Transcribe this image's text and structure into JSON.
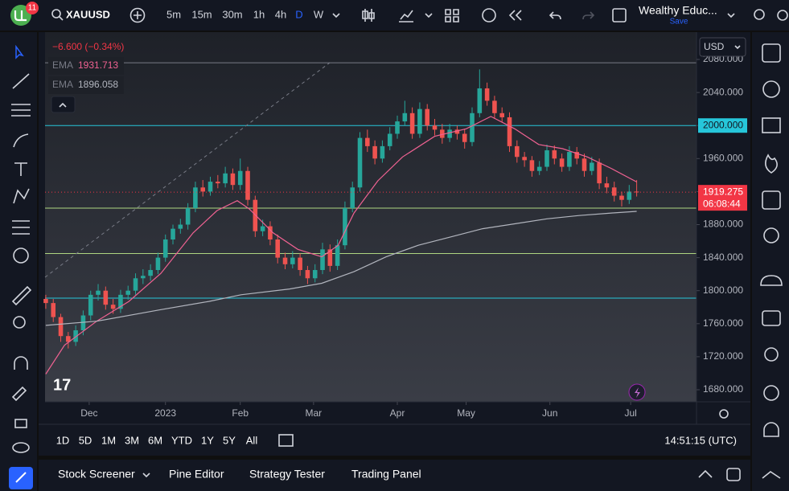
{
  "toolbar": {
    "badge": "11",
    "symbol": "XAUUSD",
    "intervals": [
      "5m",
      "15m",
      "30m",
      "1h",
      "4h",
      "D",
      "W"
    ],
    "active_interval": 5,
    "layout_name": "Wealthy Educ...",
    "save": "Save"
  },
  "chart_data": {
    "type": "candlestick",
    "change": "−6.600 (−0.34%)",
    "up_color": "#26a69a",
    "down_color": "#ef5350",
    "candles": [
      [
        1790,
        1795,
        1778,
        1785
      ],
      [
        1785,
        1790,
        1762,
        1768
      ],
      [
        1768,
        1772,
        1738,
        1745
      ],
      [
        1745,
        1750,
        1730,
        1738
      ],
      [
        1738,
        1758,
        1733,
        1752
      ],
      [
        1752,
        1776,
        1746,
        1770
      ],
      [
        1770,
        1800,
        1764,
        1795
      ],
      [
        1795,
        1808,
        1788,
        1800
      ],
      [
        1800,
        1805,
        1777,
        1783
      ],
      [
        1783,
        1790,
        1772,
        1778
      ],
      [
        1778,
        1801,
        1773,
        1795
      ],
      [
        1795,
        1806,
        1789,
        1800
      ],
      [
        1800,
        1821,
        1795,
        1815
      ],
      [
        1815,
        1826,
        1808,
        1818
      ],
      [
        1818,
        1832,
        1812,
        1825
      ],
      [
        1825,
        1846,
        1820,
        1840
      ],
      [
        1840,
        1868,
        1835,
        1862
      ],
      [
        1862,
        1880,
        1856,
        1875
      ],
      [
        1875,
        1887,
        1869,
        1880
      ],
      [
        1880,
        1906,
        1874,
        1900
      ],
      [
        1900,
        1932,
        1895,
        1925
      ],
      [
        1925,
        1934,
        1914,
        1920
      ],
      [
        1920,
        1938,
        1915,
        1932
      ],
      [
        1932,
        1940,
        1924,
        1930
      ],
      [
        1930,
        1950,
        1925,
        1942
      ],
      [
        1942,
        1948,
        1922,
        1928
      ],
      [
        1928,
        1960,
        1922,
        1945
      ],
      [
        1945,
        1950,
        1903,
        1910
      ],
      [
        1910,
        1915,
        1865,
        1872
      ],
      [
        1872,
        1886,
        1866,
        1878
      ],
      [
        1878,
        1884,
        1855,
        1862
      ],
      [
        1862,
        1868,
        1833,
        1840
      ],
      [
        1840,
        1846,
        1826,
        1832
      ],
      [
        1832,
        1848,
        1827,
        1840
      ],
      [
        1840,
        1845,
        1818,
        1825
      ],
      [
        1825,
        1830,
        1808,
        1815
      ],
      [
        1815,
        1832,
        1810,
        1825
      ],
      [
        1825,
        1858,
        1820,
        1850
      ],
      [
        1850,
        1856,
        1823,
        1830
      ],
      [
        1830,
        1862,
        1825,
        1855
      ],
      [
        1855,
        1908,
        1850,
        1900
      ],
      [
        1900,
        1932,
        1895,
        1925
      ],
      [
        1925,
        1992,
        1920,
        1985
      ],
      [
        1985,
        1995,
        1968,
        1975
      ],
      [
        1975,
        1982,
        1953,
        1960
      ],
      [
        1960,
        1982,
        1955,
        1975
      ],
      [
        1975,
        1998,
        1970,
        1990
      ],
      [
        1990,
        2012,
        1984,
        2005
      ],
      [
        2005,
        2030,
        2000,
        2015
      ],
      [
        2015,
        2022,
        1984,
        1990
      ],
      [
        1990,
        2028,
        1985,
        2020
      ],
      [
        2020,
        2026,
        1994,
        2000
      ],
      [
        2000,
        2008,
        1988,
        1995
      ],
      [
        1995,
        2002,
        1978,
        1985
      ],
      [
        1985,
        2002,
        1980,
        1995
      ],
      [
        1995,
        2000,
        1983,
        1990
      ],
      [
        1990,
        1996,
        1972,
        1980
      ],
      [
        1980,
        2022,
        1975,
        2015
      ],
      [
        2015,
        2068,
        2010,
        2045
      ],
      [
        2045,
        2052,
        2024,
        2030
      ],
      [
        2030,
        2036,
        2008,
        2015
      ],
      [
        2015,
        2022,
        2004,
        2010
      ],
      [
        2010,
        2016,
        1968,
        1975
      ],
      [
        1975,
        1982,
        1955,
        1962
      ],
      [
        1962,
        1968,
        1950,
        1958
      ],
      [
        1958,
        1963,
        1938,
        1945
      ],
      [
        1945,
        1957,
        1940,
        1950
      ],
      [
        1950,
        1977,
        1945,
        1970
      ],
      [
        1970,
        1976,
        1953,
        1960
      ],
      [
        1960,
        1966,
        1944,
        1950
      ],
      [
        1950,
        1975,
        1945,
        1968
      ],
      [
        1968,
        1974,
        1953,
        1960
      ],
      [
        1960,
        1966,
        1938,
        1945
      ],
      [
        1945,
        1962,
        1940,
        1955
      ],
      [
        1955,
        1960,
        1923,
        1930
      ],
      [
        1930,
        1938,
        1918,
        1925
      ],
      [
        1925,
        1932,
        1908,
        1915
      ],
      [
        1915,
        1920,
        1902,
        1910
      ],
      [
        1910,
        1928,
        1905,
        1920
      ],
      [
        1920,
        1934,
        1914,
        1919.275
      ]
    ],
    "series": [
      {
        "name": "EMA",
        "color": "#f06292",
        "last_label": "1931.713",
        "x": [
          0,
          2.5,
          6.8,
          11.1,
          15.4,
          19.7,
          22.9,
          25.6,
          27.2,
          30.4,
          33.7,
          36.9,
          39.1,
          41.2,
          44.4,
          47.7,
          52,
          56.2,
          59.5,
          62.7,
          65.9,
          69.1,
          72.4,
          75.6,
          79
        ],
        "values": [
          1699,
          1734,
          1763,
          1787,
          1821,
          1870,
          1897,
          1909,
          1899,
          1870,
          1850,
          1841,
          1855,
          1894,
          1933,
          1962,
          1987,
          1996,
          2011,
          1996,
          1977,
          1972,
          1962,
          1948,
          1931.713
        ]
      },
      {
        "name": "EMA",
        "color": "#b2b5be",
        "last_label": "1896.058",
        "x": [
          0,
          6.8,
          15.4,
          21.8,
          26.1,
          32.6,
          36.9,
          41.2,
          45.5,
          49.8,
          54.1,
          58.4,
          62.7,
          67,
          71.3,
          75.6,
          79
        ],
        "values": [
          1758,
          1763,
          1777,
          1787,
          1795,
          1802,
          1809,
          1823,
          1841,
          1855,
          1865,
          1875,
          1881,
          1887,
          1891,
          1894,
          1896.058
        ]
      }
    ],
    "hlines": [
      {
        "value": 2076,
        "color": "#787b86"
      },
      {
        "value": 2000,
        "color": "#26c6da",
        "label": "2000.000"
      },
      {
        "value": 1900,
        "color": "#aed581"
      },
      {
        "value": 1845,
        "color": "#aed581"
      },
      {
        "value": 1791,
        "color": "#26c6da"
      }
    ],
    "price": {
      "value": 1919.275,
      "label": "1919.275",
      "countdown": "06:08:44",
      "color": "#f23645"
    },
    "currency": "USD",
    "xlim": [
      -0.1,
      87
    ],
    "ylim": [
      1665.4,
      2113.1
    ],
    "xticks": [
      {
        "value": 5.8,
        "label": "Dec"
      },
      {
        "value": 16,
        "label": "2023"
      },
      {
        "value": 26,
        "label": "Feb"
      },
      {
        "value": 35.8,
        "label": "Mar"
      },
      {
        "value": 47,
        "label": "Apr"
      },
      {
        "value": 56.2,
        "label": "May"
      },
      {
        "value": 67.4,
        "label": "Jun"
      },
      {
        "value": 78.2,
        "label": "Jul"
      }
    ],
    "yticks": [
      {
        "value": 2080,
        "label": "2080.000"
      },
      {
        "value": 2040,
        "label": "2040.000"
      },
      {
        "value": 2000,
        "label": "2000.000"
      },
      {
        "value": 1960,
        "label": "1960.000"
      },
      {
        "value": 1920,
        "label": "1920.000"
      },
      {
        "value": 1880,
        "label": "1880.000"
      },
      {
        "value": 1840,
        "label": "1840.000"
      },
      {
        "value": 1800,
        "label": "1800.000"
      },
      {
        "value": 1760,
        "label": "1760.000"
      },
      {
        "value": 1720,
        "label": "1720.000"
      },
      {
        "value": 1680,
        "label": "1680.000"
      }
    ]
  },
  "range_bar": {
    "ranges": [
      "1D",
      "5D",
      "1M",
      "3M",
      "6M",
      "YTD",
      "1Y",
      "5Y",
      "All"
    ],
    "clock": "14:51:15 (UTC)"
  },
  "bottom_panel": {
    "tabs": [
      "Stock Screener",
      "Pine Editor",
      "Strategy Tester",
      "Trading Panel"
    ]
  }
}
